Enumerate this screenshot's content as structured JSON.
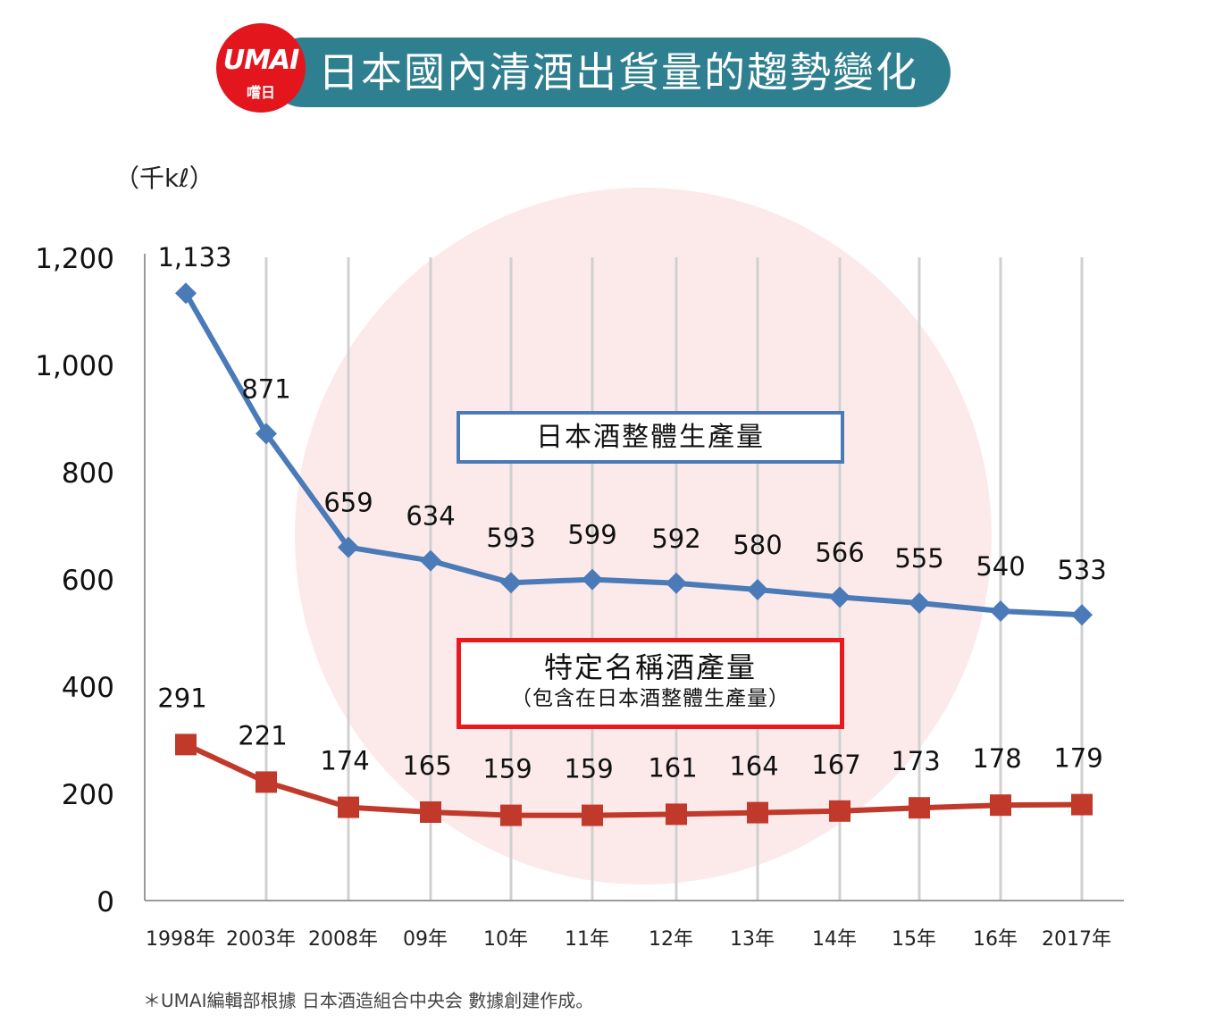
{
  "header": {
    "title": "日本國內清酒出貨量的趨勢變化",
    "logo_text": "UMAI",
    "logo_sub": "嚐日"
  },
  "colors": {
    "header_bar": "#2e7f8f",
    "logo": "#e3161e",
    "series_total": "#4a7ab8",
    "series_special": "#c0392b",
    "box_red": "#e81a1e"
  },
  "footnote": "＊UMAI編輯部根據 日本酒造組合中央会 數據創建作成。",
  "chart_data": {
    "type": "line",
    "unit_label": "（千kℓ）",
    "categories": [
      "1998年",
      "2003年",
      "2008年",
      "09年",
      "10年",
      "11年",
      "12年",
      "13年",
      "14年",
      "15年",
      "16年",
      "2017年"
    ],
    "series": [
      {
        "name": "日本酒整體生產量",
        "marker": "diamond",
        "values": [
          1133,
          871,
          659,
          634,
          593,
          599,
          592,
          580,
          566,
          555,
          540,
          533
        ],
        "labels": [
          "1,133",
          "871",
          "659",
          "634",
          "593",
          "599",
          "592",
          "580",
          "566",
          "555",
          "540",
          "533"
        ]
      },
      {
        "name": "特定名稱酒產量",
        "name_note": "（包含在日本酒整體生產量）",
        "marker": "square",
        "values": [
          291,
          221,
          174,
          165,
          159,
          159,
          161,
          164,
          167,
          173,
          178,
          179
        ],
        "labels": [
          "291",
          "221",
          "174",
          "165",
          "159",
          "159",
          "161",
          "164",
          "167",
          "173",
          "178",
          "179"
        ]
      }
    ],
    "ylim": [
      0,
      1200
    ],
    "yticks": [
      0,
      200,
      400,
      600,
      800,
      1000,
      1200
    ],
    "ytick_labels": [
      "0",
      "200",
      "400",
      "600",
      "800",
      "1,000",
      "1,200"
    ],
    "grid": "vertical",
    "legend": "inline boxes"
  }
}
